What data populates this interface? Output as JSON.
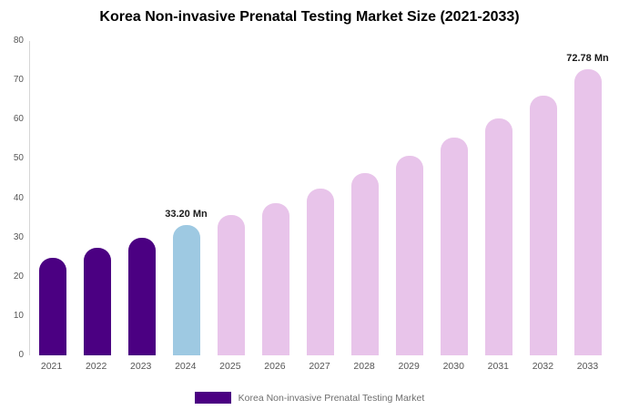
{
  "chart_data": {
    "type": "bar",
    "title": "Korea Non-invasive Prenatal Testing Market Size (2021-2033)",
    "categories": [
      "2021",
      "2022",
      "2023",
      "2024",
      "2025",
      "2026",
      "2027",
      "2028",
      "2029",
      "2030",
      "2031",
      "2032",
      "2033"
    ],
    "values": [
      24.9,
      27.4,
      29.9,
      33.2,
      35.6,
      38.8,
      42.4,
      46.3,
      50.7,
      55.4,
      60.4,
      66.1,
      72.78
    ],
    "unit": "Mn",
    "xlabel": "",
    "ylabel": "",
    "ylim": [
      0,
      80
    ],
    "yticks": [
      0,
      10,
      20,
      30,
      40,
      50,
      60,
      70,
      80
    ],
    "grid": false,
    "bar_colors": [
      "#4B0082",
      "#4B0082",
      "#4B0082",
      "#9EC9E2",
      "#E8C4EA",
      "#E8C4EA",
      "#E8C4EA",
      "#E8C4EA",
      "#E8C4EA",
      "#E8C4EA",
      "#E8C4EA",
      "#E8C4EA",
      "#E8C4EA"
    ],
    "annotations": [
      {
        "index": 3,
        "text": "33.20 Mn"
      },
      {
        "index": 12,
        "text": "72.78 Mn"
      }
    ],
    "legend": {
      "position": "bottom",
      "label": "Korea Non-invasive Prenatal Testing Market",
      "swatch_color": "#4B0082"
    }
  }
}
